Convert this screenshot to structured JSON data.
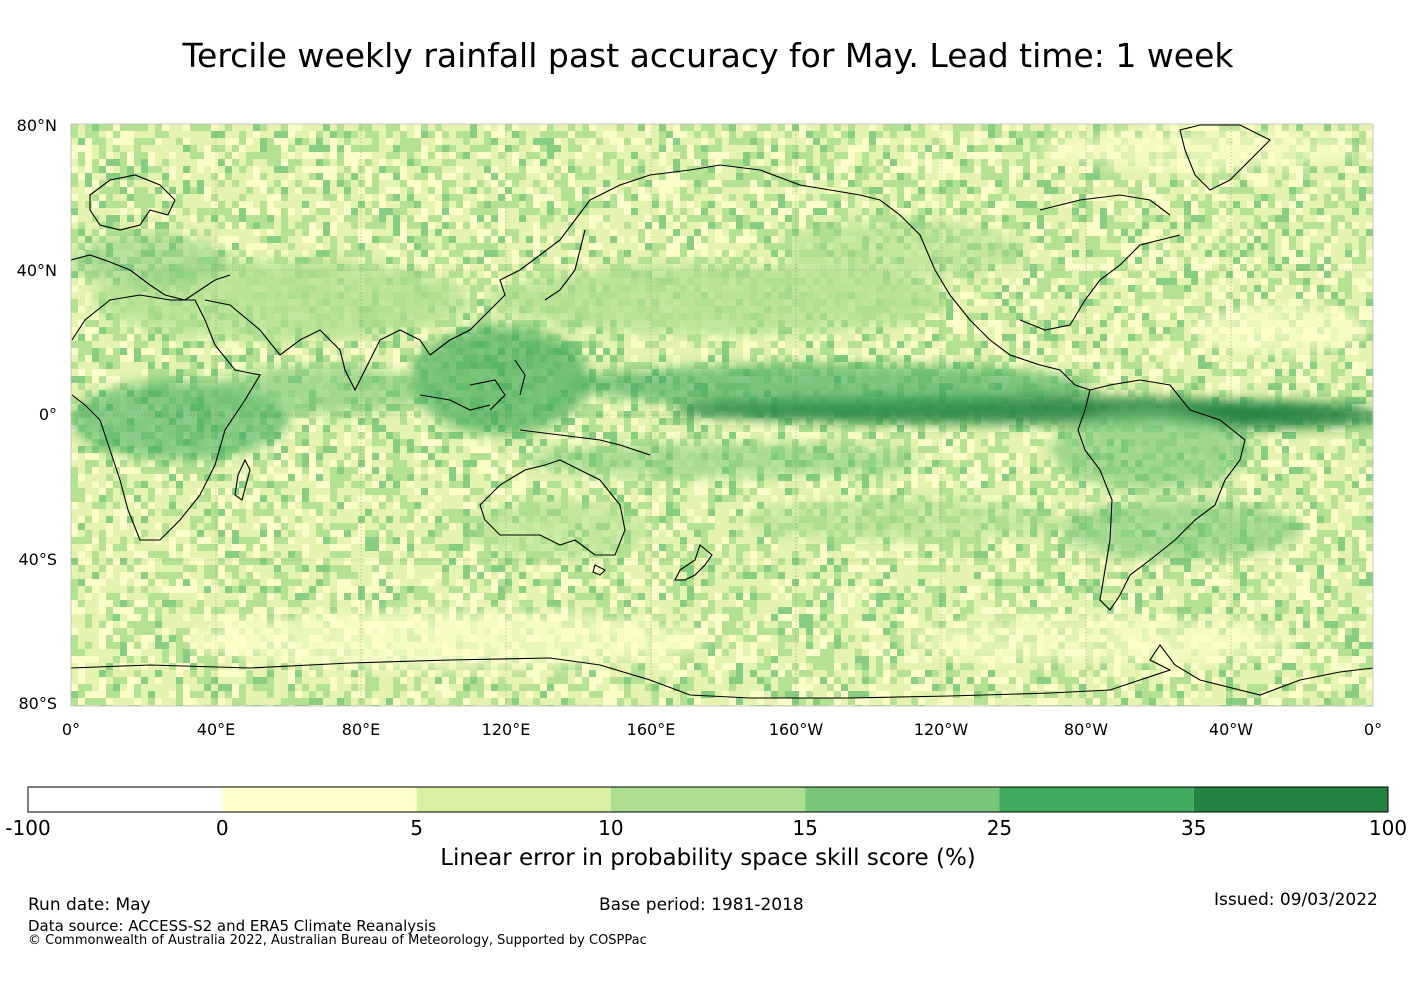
{
  "title": "Tercile weekly rainfall past accuracy for May. Lead time: 1 week",
  "map": {
    "projection": "plate-carree, centered on 180°",
    "lat_ticks": [
      "80°N",
      "40°N",
      "0°",
      "40°S",
      "80°S"
    ],
    "lon_ticks": [
      "0°",
      "40°E",
      "80°E",
      "120°E",
      "160°E",
      "160°W",
      "120°W",
      "80°W",
      "40°W",
      "0°"
    ],
    "grid": true,
    "coastlines": true,
    "field": "Linear error in probability space skill score (%)"
  },
  "colorbar": {
    "label": "Linear error in probability space skill score (%)",
    "boundaries": [
      "-100",
      "0",
      "5",
      "10",
      "15",
      "25",
      "35",
      "100"
    ],
    "colors": [
      "#ffffff",
      "#ffffcc",
      "#d9f0a3",
      "#addd8e",
      "#78c679",
      "#41ab5d",
      "#238443"
    ]
  },
  "footer": {
    "run_date": "Run date: May",
    "base_period": "Base period: 1981-2018",
    "issued": "Issued: 09/03/2022",
    "data_source": "Data source: ACCESS-S2 and ERA5 Climate Reanalysis",
    "copyright": "© Commonwealth of Australia 2022, Australian Bureau of Meteorology, Supported by COSPPac"
  }
}
